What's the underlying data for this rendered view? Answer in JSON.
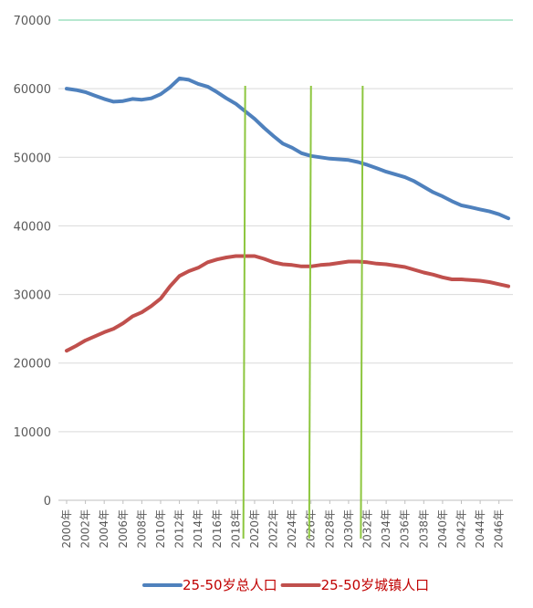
{
  "chart_data": {
    "type": "line",
    "title": "",
    "xlabel": "",
    "ylabel": "",
    "ylim": [
      0,
      70000
    ],
    "yticks": [
      0,
      10000,
      20000,
      30000,
      40000,
      50000,
      60000,
      70000
    ],
    "x": [
      2000,
      2001,
      2002,
      2003,
      2004,
      2005,
      2006,
      2007,
      2008,
      2009,
      2010,
      2011,
      2012,
      2013,
      2014,
      2015,
      2016,
      2017,
      2018,
      2019,
      2020,
      2021,
      2022,
      2023,
      2024,
      2025,
      2026,
      2027,
      2028,
      2029,
      2030,
      2031,
      2032,
      2033,
      2034,
      2035,
      2036,
      2037,
      2038,
      2039,
      2040,
      2041,
      2042,
      2043,
      2044,
      2045,
      2046,
      2047
    ],
    "x_tick_labels": [
      "2000年",
      "2002年",
      "2004年",
      "2006年",
      "2008年",
      "2010年",
      "2012年",
      "2014年",
      "2016年",
      "2018年",
      "2020年",
      "2022年",
      "2024年",
      "2026年",
      "2028年",
      "2030年",
      "2032年",
      "2034年",
      "2036年",
      "2038年",
      "2040年",
      "2042年",
      "2044年",
      "2046年"
    ],
    "series": [
      {
        "name": "25-50岁总人口",
        "color": "#4f81bd",
        "values": [
          60000,
          59800,
          59500,
          59000,
          58500,
          58100,
          58200,
          58500,
          58400,
          58600,
          59200,
          60200,
          61500,
          61300,
          60700,
          60300,
          59500,
          58600,
          57800,
          56700,
          55600,
          54300,
          53100,
          52000,
          51400,
          50600,
          50200,
          50000,
          49800,
          49700,
          49600,
          49300,
          48900,
          48400,
          47900,
          47500,
          47100,
          46500,
          45700,
          44900,
          44300,
          43600,
          43000,
          42700,
          42400,
          42100,
          41700,
          41100
        ]
      },
      {
        "name": "25-50岁城镇人口",
        "color": "#c0504d",
        "values": [
          21800,
          22500,
          23300,
          23900,
          24500,
          25000,
          25800,
          26800,
          27400,
          28300,
          29400,
          31200,
          32700,
          33400,
          33900,
          34700,
          35100,
          35400,
          35600,
          35600,
          35600,
          35200,
          34700,
          34400,
          34300,
          34100,
          34100,
          34300,
          34400,
          34600,
          34800,
          34800,
          34700,
          34500,
          34400,
          34200,
          34000,
          33600,
          33200,
          32900,
          32500,
          32200,
          32200,
          32100,
          32000,
          31800,
          31500,
          31200
        ]
      }
    ],
    "vertical_markers_x": [
      2019,
      2026,
      2031.5
    ],
    "marker_color": "#8dc63f",
    "grid": true,
    "legend_position": "bottom"
  }
}
